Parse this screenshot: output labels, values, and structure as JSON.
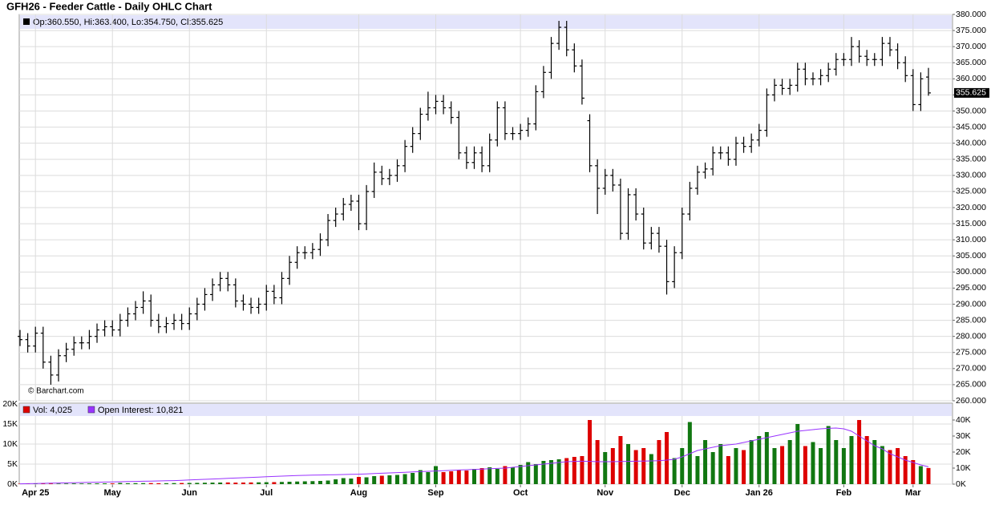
{
  "title": "GFH26 - Feeder Cattle - Daily OHLC Chart",
  "watermark": "© Barchart.com",
  "chart_data": [
    {
      "type": "ohlc",
      "header": "Op:360.550, Hi:363.400, Lo:354.750, Cl:355.625",
      "color": "#000000",
      "last_label": {
        "value": 355.625,
        "label": "355.625"
      },
      "ylim": [
        260,
        380
      ],
      "yticks": [
        {
          "value": 260,
          "label": "260.000"
        },
        {
          "value": 265,
          "label": "265.000"
        },
        {
          "value": 270,
          "label": "270.000"
        },
        {
          "value": 275,
          "label": "275.000"
        },
        {
          "value": 280,
          "label": "280.000"
        },
        {
          "value": 285,
          "label": "285.000"
        },
        {
          "value": 290,
          "label": "290.000"
        },
        {
          "value": 295,
          "label": "295.000"
        },
        {
          "value": 300,
          "label": "300.000"
        },
        {
          "value": 305,
          "label": "305.000"
        },
        {
          "value": 310,
          "label": "310.000"
        },
        {
          "value": 315,
          "label": "315.000"
        },
        {
          "value": 320,
          "label": "320.000"
        },
        {
          "value": 325,
          "label": "325.000"
        },
        {
          "value": 330,
          "label": "330.000"
        },
        {
          "value": 335,
          "label": "335.000"
        },
        {
          "value": 340,
          "label": "340.000"
        },
        {
          "value": 345,
          "label": "345.000"
        },
        {
          "value": 350,
          "label": "350.000"
        },
        {
          "value": 355,
          "label": "355.000"
        },
        {
          "value": 360,
          "label": "360.000"
        },
        {
          "value": 365,
          "label": "365.000"
        },
        {
          "value": 370,
          "label": "370.000"
        },
        {
          "value": 375,
          "label": "375.000"
        },
        {
          "value": 380,
          "label": "380.000"
        }
      ],
      "xticks": [
        {
          "value": 2,
          "label": "Apr 25"
        },
        {
          "value": 12,
          "label": "May"
        },
        {
          "value": 22,
          "label": "Jun"
        },
        {
          "value": 32,
          "label": "Jul"
        },
        {
          "value": 44,
          "label": "Aug"
        },
        {
          "value": 54,
          "label": "Sep"
        },
        {
          "value": 65,
          "label": "Oct"
        },
        {
          "value": 76,
          "label": "Nov"
        },
        {
          "value": 86,
          "label": "Dec"
        },
        {
          "value": 96,
          "label": "Jan 26"
        },
        {
          "value": 107,
          "label": "Feb"
        },
        {
          "value": 116,
          "label": "Mar"
        }
      ],
      "grid": true,
      "open": [
        280,
        279,
        277,
        281,
        272,
        268,
        274,
        276,
        278,
        278,
        280,
        282,
        283,
        282,
        285,
        287,
        289,
        291,
        285,
        283,
        284,
        285,
        284,
        287,
        290,
        293,
        296,
        298,
        296,
        291,
        290,
        289,
        290,
        294,
        292,
        298,
        303,
        306,
        306,
        307,
        310,
        316,
        318,
        321,
        322,
        315,
        325,
        331,
        329,
        330,
        333,
        339,
        343,
        349,
        351,
        353,
        351,
        348,
        337,
        334,
        337,
        333,
        341,
        351,
        343,
        343,
        344,
        346,
        356,
        362,
        371,
        376,
        369,
        364,
        347,
        333,
        326,
        330,
        327,
        312,
        324,
        318,
        309,
        312,
        308,
        297,
        306,
        318,
        326,
        331,
        332,
        337,
        337,
        335,
        340,
        339,
        341,
        344,
        355,
        358,
        357,
        358,
        363,
        360,
        360,
        361,
        363,
        366,
        366,
        370,
        367,
        366,
        366,
        371,
        369,
        365,
        361,
        352,
        360.55
      ],
      "high": [
        282,
        281,
        283,
        283,
        274,
        276,
        278,
        280,
        280,
        282,
        284,
        285,
        285,
        287,
        289,
        291,
        294,
        293,
        287,
        286,
        287,
        287,
        289,
        292,
        295,
        298,
        300,
        300,
        298,
        293,
        292,
        292,
        296,
        296,
        300,
        305,
        308,
        308,
        309,
        312,
        318,
        320,
        323,
        324,
        324,
        327,
        334,
        333,
        332,
        335,
        341,
        345,
        351,
        356,
        355,
        355,
        353,
        350,
        339,
        339,
        339,
        343,
        353,
        353,
        345,
        346,
        348,
        358,
        364,
        373,
        378,
        378,
        371,
        366,
        349,
        335,
        332,
        332,
        329,
        326,
        326,
        320,
        314,
        314,
        310,
        308,
        320,
        328,
        333,
        334,
        339,
        339,
        339,
        342,
        342,
        343,
        346,
        357,
        360,
        360,
        360,
        365,
        365,
        362,
        363,
        365,
        368,
        368,
        373,
        372,
        369,
        368,
        373,
        373,
        371,
        367,
        363,
        362,
        363.4
      ],
      "low": [
        277,
        275,
        275,
        270,
        265,
        266,
        272,
        274,
        276,
        276,
        278,
        280,
        280,
        280,
        283,
        285,
        287,
        283,
        281,
        281,
        282,
        282,
        282,
        285,
        288,
        291,
        294,
        294,
        289,
        288,
        287,
        287,
        288,
        290,
        290,
        296,
        301,
        304,
        304,
        305,
        308,
        314,
        316,
        319,
        313,
        313,
        323,
        327,
        327,
        328,
        331,
        337,
        341,
        347,
        349,
        349,
        346,
        335,
        332,
        332,
        331,
        331,
        339,
        341,
        341,
        341,
        342,
        344,
        354,
        360,
        369,
        367,
        362,
        352,
        331,
        318,
        324,
        325,
        310,
        310,
        316,
        307,
        307,
        306,
        293,
        295,
        304,
        316,
        324,
        329,
        330,
        335,
        333,
        333,
        337,
        337,
        339,
        342,
        353,
        355,
        355,
        356,
        358,
        358,
        358,
        359,
        361,
        364,
        364,
        365,
        364,
        364,
        364,
        367,
        363,
        359,
        350,
        350,
        354.75
      ],
      "close": [
        279,
        277,
        281,
        272,
        268,
        274,
        276,
        278,
        278,
        280,
        282,
        283,
        282,
        285,
        287,
        289,
        291,
        285,
        283,
        284,
        285,
        284,
        287,
        290,
        293,
        296,
        298,
        296,
        291,
        290,
        289,
        290,
        294,
        292,
        298,
        303,
        306,
        306,
        307,
        310,
        316,
        318,
        321,
        322,
        315,
        325,
        331,
        329,
        330,
        333,
        339,
        343,
        349,
        351,
        353,
        351,
        348,
        337,
        334,
        337,
        333,
        341,
        351,
        343,
        343,
        344,
        346,
        356,
        362,
        371,
        376,
        369,
        364,
        354,
        333,
        326,
        330,
        327,
        312,
        324,
        318,
        309,
        312,
        308,
        297,
        306,
        318,
        326,
        331,
        332,
        337,
        337,
        335,
        340,
        339,
        341,
        344,
        355,
        358,
        357,
        358,
        363,
        360,
        360,
        361,
        363,
        366,
        366,
        370,
        367,
        366,
        366,
        371,
        369,
        365,
        361,
        352,
        360,
        355.625
      ]
    },
    {
      "type": "bar",
      "ylim": [
        0,
        20000
      ],
      "yticks": [
        {
          "value": 0,
          "label": "0K"
        },
        {
          "value": 5000,
          "label": "5K"
        },
        {
          "value": 10000,
          "label": "10K"
        },
        {
          "value": 15000,
          "label": "15K"
        },
        {
          "value": 20000,
          "label": "20K"
        }
      ],
      "y2lim": [
        0,
        50000
      ],
      "y2ticks": [
        {
          "value": 0,
          "label": "0K"
        },
        {
          "value": 10000,
          "label": "10K"
        },
        {
          "value": 20000,
          "label": "20K"
        },
        {
          "value": 30000,
          "label": "30K"
        },
        {
          "value": 40000,
          "label": "40K"
        }
      ],
      "grid": true,
      "series": [
        {
          "name": "Vol: 4,025",
          "type": "bar",
          "color": "#dd0000",
          "up_color": "#117711",
          "down_color": "#dd0000",
          "values": [
            100,
            120,
            150,
            130,
            160,
            140,
            150,
            170,
            160,
            180,
            190,
            200,
            180,
            300,
            220,
            240,
            250,
            260,
            230,
            240,
            260,
            280,
            300,
            320,
            350,
            380,
            400,
            420,
            380,
            400,
            420,
            450,
            480,
            500,
            550,
            600,
            650,
            700,
            750,
            800,
            900,
            1200,
            1500,
            1400,
            1800,
            1700,
            2000,
            2100,
            2200,
            2300,
            2500,
            2800,
            3500,
            3000,
            4500,
            3000,
            3200,
            3600,
            3400,
            3800,
            4000,
            4200,
            3800,
            4500,
            4200,
            4800,
            5500,
            5000,
            5800,
            6000,
            6200,
            6500,
            6800,
            7000,
            16000,
            11000,
            8000,
            9000,
            12000,
            10000,
            8500,
            9000,
            7500,
            11000,
            13000,
            6500,
            9000,
            15500,
            7000,
            11000,
            8000,
            10000,
            7000,
            9000,
            8500,
            11000,
            12000,
            13000,
            9000,
            9500,
            11000,
            15000,
            9500,
            10500,
            9000,
            14500,
            11000,
            9000,
            12000,
            16000,
            12000,
            11000,
            9500,
            8500,
            9000,
            7000,
            6000,
            4500,
            4025
          ]
        },
        {
          "name": "Open Interest: 10,821",
          "type": "line",
          "axis": "y2",
          "color": "#9933ff",
          "values": [
            200,
            300,
            400,
            500,
            600,
            700,
            800,
            900,
            1000,
            1100,
            1200,
            1300,
            1400,
            1500,
            1600,
            1700,
            1800,
            1900,
            2000,
            2100,
            2200,
            2400,
            2600,
            2800,
            3000,
            3200,
            3400,
            3600,
            3800,
            4000,
            4200,
            4400,
            4600,
            4800,
            5000,
            5200,
            5400,
            5500,
            5600,
            5700,
            5800,
            5900,
            6000,
            6100,
            6200,
            6400,
            6600,
            6800,
            7000,
            7200,
            7400,
            7600,
            7800,
            8000,
            8200,
            8400,
            8600,
            8800,
            9000,
            9200,
            9400,
            9600,
            9800,
            10000,
            10500,
            11000,
            11500,
            12000,
            12500,
            13000,
            13500,
            14000,
            14200,
            14300,
            14200,
            14000,
            14000,
            14000,
            14100,
            14200,
            14300,
            14400,
            14500,
            14600,
            15000,
            15500,
            17000,
            19000,
            21000,
            22000,
            23000,
            24000,
            24500,
            25000,
            26000,
            27000,
            28000,
            29000,
            30000,
            31000,
            32000,
            33000,
            33500,
            34000,
            34500,
            34800,
            35000,
            34500,
            33000,
            30000,
            27000,
            24000,
            22000,
            19000,
            17000,
            15000,
            13500,
            12000,
            10821
          ]
        }
      ]
    }
  ]
}
